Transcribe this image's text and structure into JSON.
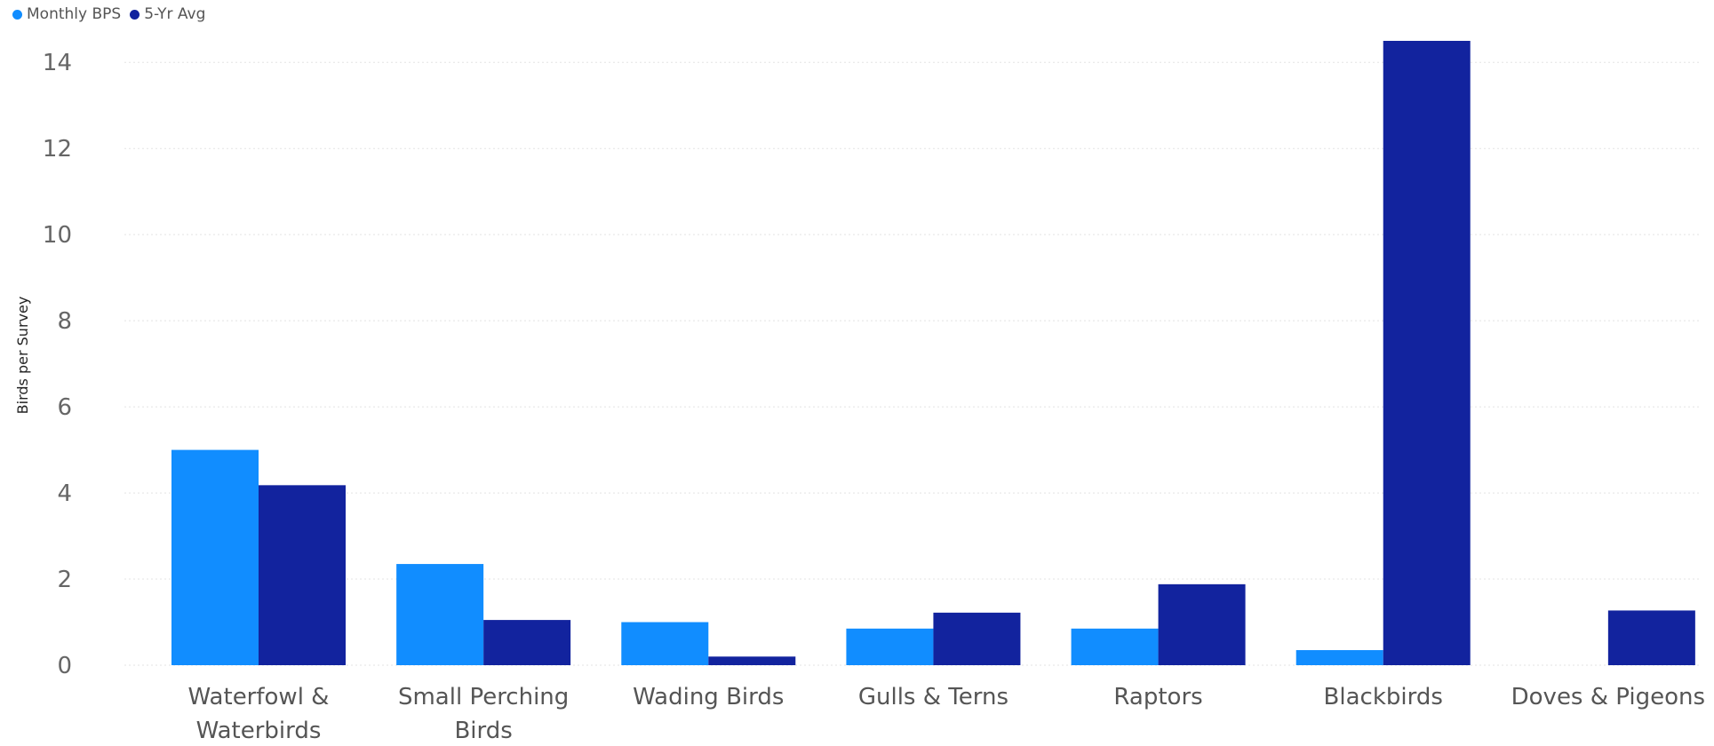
{
  "chart_data": {
    "type": "bar",
    "title": "",
    "xlabel": "",
    "ylabel": "Birds per Survey",
    "ylim": [
      0,
      14.5
    ],
    "yticks": [
      0,
      2,
      4,
      6,
      8,
      10,
      12,
      14
    ],
    "grid": true,
    "legend_position": "top-left",
    "categories": [
      [
        "Waterfowl &",
        "Waterbirds"
      ],
      [
        "Small Perching",
        "Birds"
      ],
      [
        "Wading Birds"
      ],
      [
        "Gulls & Terns"
      ],
      [
        "Raptors"
      ],
      [
        "Blackbirds"
      ],
      [
        "Doves & Pigeons"
      ]
    ],
    "series": [
      {
        "name": "Monthly BPS",
        "color": "#118DFF",
        "values": [
          5.0,
          2.35,
          1.0,
          0.85,
          0.85,
          0.35,
          0
        ]
      },
      {
        "name": "5-Yr Avg",
        "color": "#12239E",
        "values": [
          4.18,
          1.05,
          0.2,
          1.22,
          1.88,
          14.5,
          1.27
        ]
      }
    ]
  }
}
